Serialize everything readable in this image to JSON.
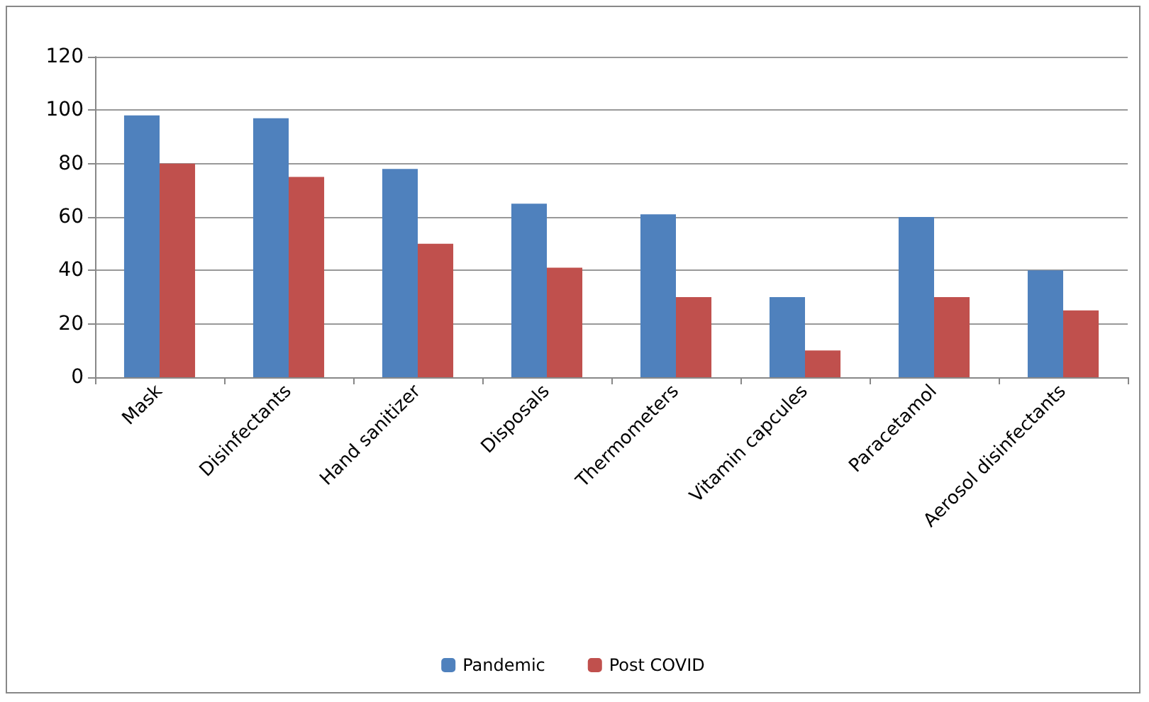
{
  "chart_data": {
    "type": "bar",
    "categories": [
      "Mask",
      "Disinfectants",
      "Hand sanitizer",
      "Disposals",
      "Thermometers",
      "Vitamin capcules",
      "Paracetamol",
      "Aerosol disinfectants"
    ],
    "series": [
      {
        "name": "Pandemic",
        "color": "#4f81bd",
        "values": [
          98,
          97,
          78,
          65,
          61,
          30,
          60,
          40
        ]
      },
      {
        "name": "Post COVID",
        "color": "#c0504d",
        "values": [
          80,
          75,
          50,
          41,
          30,
          10,
          30,
          25
        ]
      }
    ],
    "ylim": [
      0,
      120
    ],
    "yticks": [
      0,
      20,
      40,
      60,
      80,
      100,
      120
    ],
    "grid": "y",
    "legend": "bottom"
  }
}
